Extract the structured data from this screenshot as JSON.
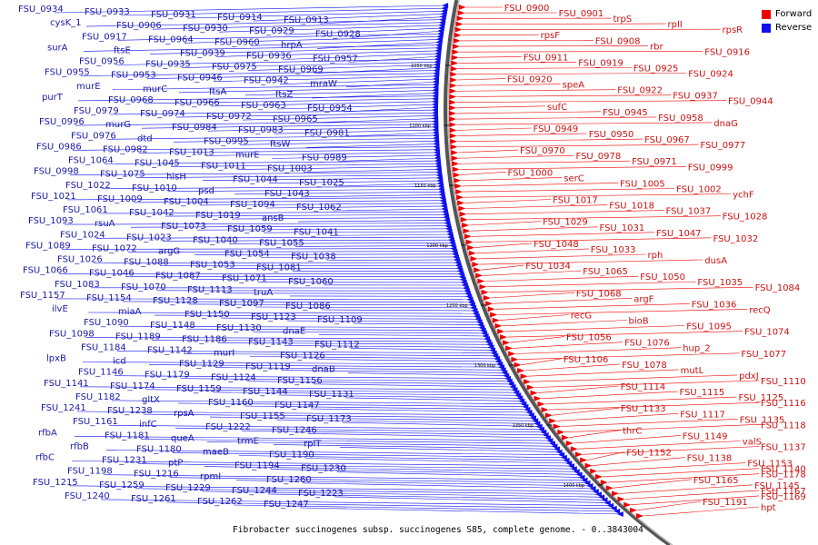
{
  "legend": [
    {
      "label": "Forward",
      "color": "#ee0000"
    },
    {
      "label": "Reverse",
      "color": "#1010ee"
    }
  ],
  "caption": "Fibrobacter succinogenes subsp. succinogenes S85, complete genome. - 0..3843004",
  "ticks": [
    "1050 kbp",
    "1100 kbp",
    "1150 kbp",
    "1200 kbp",
    "1250 kbp",
    "1300 kbp",
    "1350 kbp",
    "1400 kbp"
  ],
  "reverse_labels": [
    "FSU_0934",
    "FSU_0933",
    "FSU_0931",
    "FSU_0914",
    "FSU_0913",
    "cysK_1",
    "FSU_0906",
    "FSU_0930",
    "FSU_0929",
    "FSU_0928",
    "FSU_0917",
    "FSU_0964",
    "FSU_0960",
    "hrpA",
    "surA",
    "ftsE",
    "FSU_0939",
    "FSU_0936",
    "FSU_0957",
    "FSU_0956",
    "FSU_0935",
    "FSU_0975",
    "FSU_0969",
    "FSU_0955",
    "FSU_0953",
    "FSU_0946",
    "FSU_0942",
    "mraW",
    "murE",
    "murC",
    "ftsA",
    "ftsZ",
    "purT",
    "FSU_0968",
    "FSU_0966",
    "FSU_0963",
    "FSU_0954",
    "FSU_0979",
    "FSU_0974",
    "FSU_0972",
    "FSU_0965",
    "FSU_0996",
    "murG",
    "FSU_0984",
    "FSU_0983",
    "FSU_0981",
    "FSU_0976",
    "dtd",
    "FSU_0995",
    "ftsW",
    "FSU_0986",
    "FSU_0982",
    "FSU_1013",
    "murE",
    "FSU_0989",
    "FSU_1064",
    "FSU_1045",
    "FSU_1011",
    "FSU_1003",
    "FSU_0998",
    "FSU_1075",
    "hisH",
    "FSU_1044",
    "FSU_1025",
    "FSU_1022",
    "FSU_1010",
    "psd",
    "FSU_1043",
    "FSU_1021",
    "FSU_1009",
    "FSU_1004",
    "FSU_1094",
    "FSU_1062",
    "FSU_1061",
    "FSU_1042",
    "FSU_1019",
    "ansB",
    "FSU_1093",
    "rsuA",
    "FSU_1073",
    "FSU_1059",
    "FSU_1041",
    "FSU_1024",
    "FSU_1023",
    "FSU_1040",
    "FSU_1055",
    "FSU_1089",
    "FSU_1072",
    "argG",
    "FSU_1054",
    "FSU_1038",
    "FSU_1026",
    "FSU_1088",
    "FSU_1053",
    "FSU_1081",
    "FSU_1066",
    "FSU_1046",
    "FSU_1087",
    "FSU_1071",
    "FSU_1060",
    "FSU_1083",
    "FSU_1070",
    "FSU_1113",
    "truA",
    "FSU_1157",
    "FSU_1154",
    "FSU_1128",
    "FSU_1097",
    "FSU_1086",
    "ilvE",
    "miaA",
    "FSU_1150",
    "FSU_1123",
    "FSU_1109",
    "FSU_1090",
    "FSU_1148",
    "FSU_1130",
    "dnaE",
    "FSU_1098",
    "FSU_1189",
    "FSU_1186",
    "FSU_1143",
    "FSU_1112",
    "FSU_1184",
    "FSU_1142",
    "murI",
    "FSU_1126",
    "lpxB",
    "icd",
    "FSU_1129",
    "FSU_1119",
    "dnaB",
    "FSU_1146",
    "FSU_1179",
    "FSU_1124",
    "FSU_1156",
    "FSU_1141",
    "FSU_1174",
    "FSU_1159",
    "FSU_1144",
    "FSU_1131",
    "FSU_1182",
    "gltX",
    "FSU_1160",
    "FSU_1147",
    "FSU_1241",
    "FSU_1238",
    "rpsA",
    "FSU_1155",
    "FSU_1173",
    "FSU_1161",
    "infC",
    "FSU_1222",
    "FSU_1246",
    "rfbA",
    "FSU_1181",
    "queA",
    "trmE",
    "rplT",
    "rfbB",
    "FSU_1180",
    "maeB",
    "FSU_1190",
    "rfbC",
    "FSU_1231",
    "ptP",
    "FSU_1194",
    "FSU_1230",
    "FSU_1198",
    "FSU_1216",
    "rpmI",
    "FSU_1260",
    "FSU_1215",
    "FSU_1259",
    "FSU_1229",
    "FSU_1244",
    "FSU_1223",
    "FSU_1240",
    "FSU_1261",
    "FSU_1262",
    "FSU_1247"
  ],
  "forward_labels": [
    "FSU_0900",
    "FSU_0901",
    "trpS",
    "rplI",
    "rpsR",
    "rpsF",
    "FSU_0908",
    "rbr",
    "FSU_0916",
    "FSU_0911",
    "FSU_0919",
    "FSU_0925",
    "FSU_0924",
    "FSU_0920",
    "speA",
    "FSU_0922",
    "FSU_0937",
    "FSU_0944",
    "sufC",
    "FSU_0945",
    "FSU_0958",
    "dnaG",
    "FSU_0949",
    "FSU_0950",
    "FSU_0967",
    "FSU_0977",
    "FSU_0970",
    "FSU_0978",
    "FSU_0971",
    "FSU_0999",
    "FSU_1000",
    "serC",
    "FSU_1005",
    "FSU_1002",
    "ychF",
    "FSU_1017",
    "FSU_1018",
    "FSU_1037",
    "FSU_1028",
    "FSU_1029",
    "FSU_1031",
    "FSU_1047",
    "FSU_1032",
    "FSU_1048",
    "FSU_1033",
    "rph",
    "dusA",
    "FSU_1034",
    "FSU_1065",
    "FSU_1050",
    "FSU_1035",
    "FSU_1084",
    "FSU_1068",
    "argF",
    "FSU_1036",
    "recQ",
    "recG",
    "bioB",
    "FSU_1095",
    "FSU_1074",
    "FSU_1056",
    "FSU_1076",
    "hup_2",
    "FSU_1077",
    "FSU_1106",
    "FSU_1078",
    "mutL",
    "pdxJ",
    "FSU_1110",
    "FSU_1114",
    "FSU_1115",
    "FSU_1125",
    "FSU_1116",
    "FSU_1133",
    "FSU_1117",
    "FSU_1135",
    "FSU_1118",
    "thrC",
    "FSU_1149",
    "valS",
    "FSU_1137",
    "FSU_1152",
    "FSU_1138",
    "FSU_1153",
    "FSU_1140",
    "FSU_1178",
    "FSU_1165",
    "FSU_1145",
    "FSU_1167",
    "FSU_1169",
    "FSU_1191",
    "hpt"
  ]
}
